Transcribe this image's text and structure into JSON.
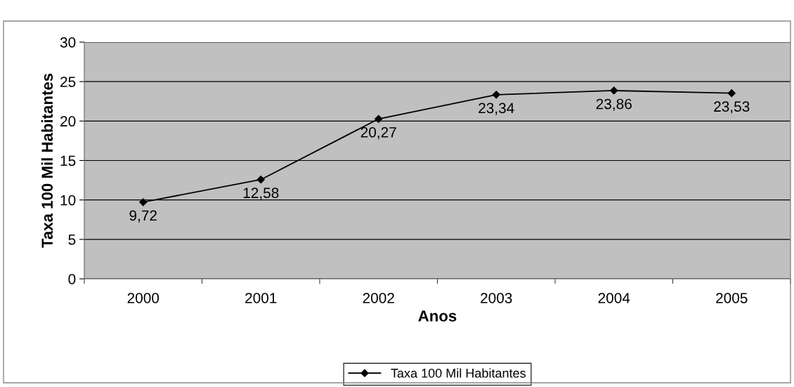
{
  "chart_data": {
    "type": "line",
    "xlabel": "Anos",
    "ylabel": "Taxa 100 Mil Habitantes",
    "categories": [
      "2000",
      "2001",
      "2002",
      "2003",
      "2004",
      "2005"
    ],
    "series": [
      {
        "name": "Taxa 100 Mil Habitantes",
        "color": "#000000",
        "values": [
          9.72,
          12.58,
          20.27,
          23.34,
          23.86,
          23.53
        ],
        "value_labels": [
          "9,72",
          "12,58",
          "20,27",
          "23,34",
          "23,86",
          "23,53"
        ]
      }
    ],
    "ylim": [
      0,
      30
    ],
    "yticks": [
      0,
      5,
      10,
      15,
      20,
      25,
      30
    ],
    "grid": "y",
    "legend": "bottom",
    "marker": "diamond",
    "line_style": "solid"
  }
}
